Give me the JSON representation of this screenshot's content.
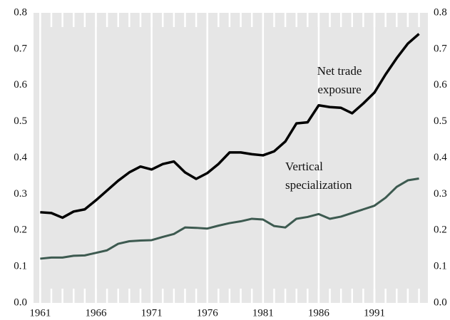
{
  "chart_data": {
    "type": "line",
    "x": [
      1961,
      1962,
      1963,
      1964,
      1965,
      1966,
      1967,
      1968,
      1969,
      1970,
      1971,
      1972,
      1973,
      1974,
      1975,
      1976,
      1977,
      1978,
      1979,
      1980,
      1981,
      1982,
      1983,
      1984,
      1985,
      1986,
      1987,
      1988,
      1989,
      1990,
      1991,
      1992,
      1993,
      1994,
      1995
    ],
    "series": [
      {
        "name": "Net trade exposure",
        "color": "#000000",
        "values": [
          0.25,
          0.248,
          0.235,
          0.252,
          0.258,
          0.283,
          0.31,
          0.337,
          0.36,
          0.376,
          0.368,
          0.383,
          0.39,
          0.36,
          0.342,
          0.358,
          0.383,
          0.415,
          0.415,
          0.41,
          0.407,
          0.418,
          0.445,
          0.495,
          0.498,
          0.545,
          0.54,
          0.538,
          0.523,
          0.55,
          0.58,
          0.63,
          0.675,
          0.715,
          0.742
        ]
      },
      {
        "name": "Vertical specialization",
        "color": "#3d5a50",
        "values": [
          0.122,
          0.125,
          0.125,
          0.13,
          0.131,
          0.138,
          0.145,
          0.163,
          0.17,
          0.172,
          0.173,
          0.182,
          0.19,
          0.208,
          0.207,
          0.205,
          0.213,
          0.22,
          0.225,
          0.232,
          0.23,
          0.212,
          0.208,
          0.232,
          0.237,
          0.245,
          0.232,
          0.238,
          0.248,
          0.258,
          0.268,
          0.29,
          0.32,
          0.338,
          0.343
        ]
      }
    ],
    "annotations": [
      [
        "Net trade",
        "exposure"
      ],
      [
        "Vertical",
        "specialization"
      ]
    ],
    "xlim": [
      1960.4,
      1995.8
    ],
    "xticks": [
      1961,
      1966,
      1971,
      1976,
      1981,
      1986,
      1991
    ],
    "ylim": [
      0,
      0.8
    ],
    "yticks": [
      {
        "value": 0,
        "label": "0.0"
      },
      0.1,
      0.2,
      0.3,
      0.4,
      0.5,
      0.6,
      0.7,
      0.8
    ],
    "y2lim": [
      0,
      0.8
    ],
    "y2ticks": [
      {
        "value": 0,
        "label": "0.0"
      },
      0.1,
      0.2,
      0.3,
      0.4,
      0.5,
      0.6,
      0.7,
      0.8
    ],
    "grid": true
  }
}
